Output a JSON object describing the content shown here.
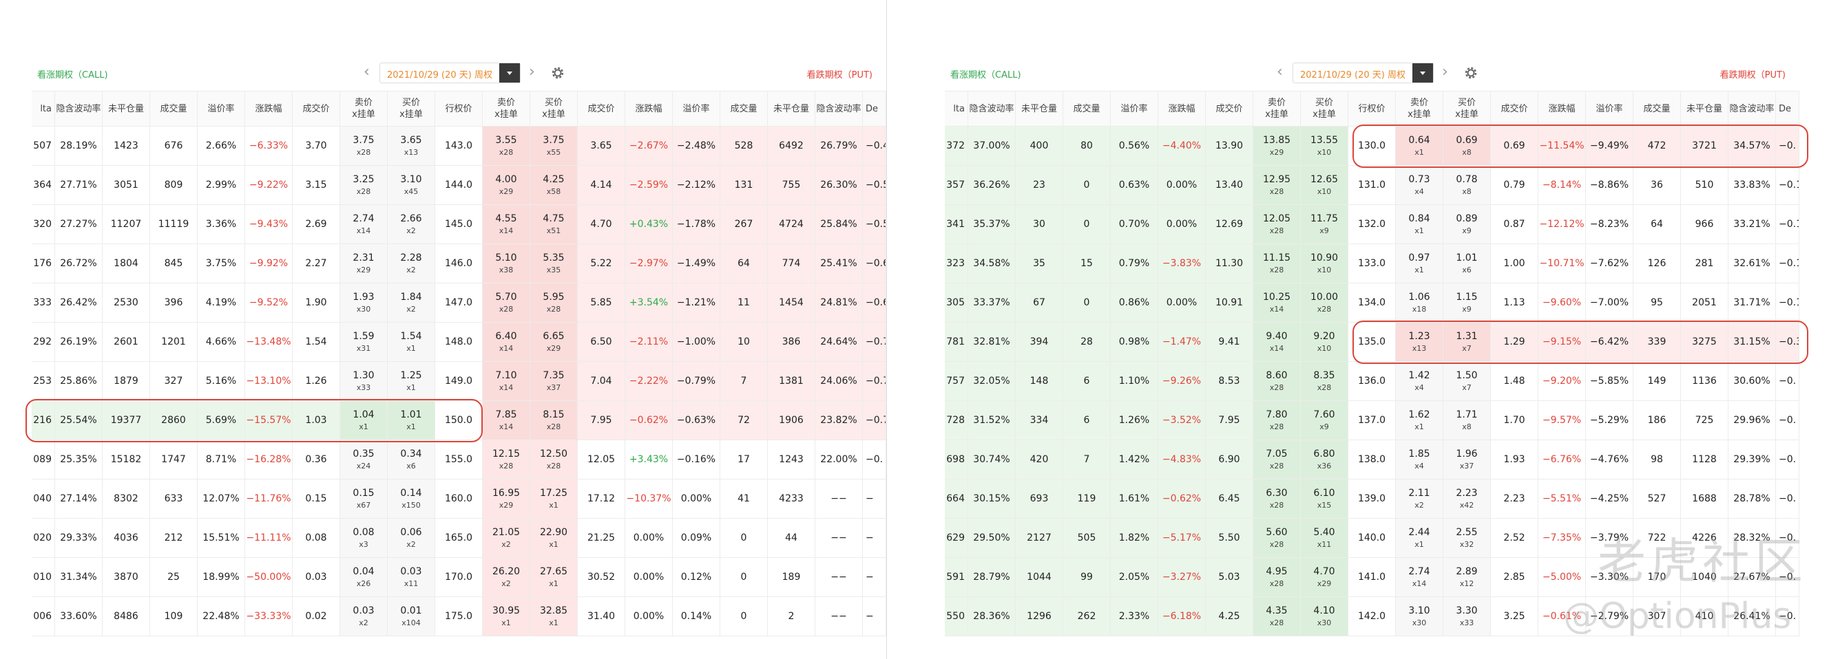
{
  "left": {
    "header": {
      "call_label": "看涨期权（CALL)",
      "date": "2021/10/29 (20 天) 周权",
      "put_label": "看跌期权（PUT)"
    },
    "columns": [
      "lta",
      "隐含波动率",
      "未平仓量",
      "成交量",
      "溢价率",
      "涨跌幅",
      "成交价",
      [
        "卖价",
        "x挂单"
      ],
      [
        "买价",
        "x挂单"
      ],
      "行权价",
      [
        "卖价",
        "x挂单"
      ],
      [
        "买价",
        "x挂单"
      ],
      "成交价",
      "涨跌幅",
      "溢价率",
      "成交量",
      "未平仓量",
      "隐含波动率",
      "De"
    ],
    "rows": [
      [
        "507",
        "28.19%",
        "1423",
        "676",
        "2.66%",
        "−6.33%",
        "3.70",
        [
          "3.75",
          "x28"
        ],
        [
          "3.65",
          "x13"
        ],
        "143.0",
        [
          "3.55",
          "x28"
        ],
        [
          "3.75",
          "x55"
        ],
        "3.65",
        "−2.67%",
        "−2.48%",
        "528",
        "6492",
        "26.79%",
        "−0.4"
      ],
      [
        "364",
        "27.71%",
        "3051",
        "809",
        "2.99%",
        "−9.22%",
        "3.15",
        [
          "3.25",
          "x28"
        ],
        [
          "3.10",
          "x45"
        ],
        "144.0",
        [
          "4.00",
          "x29"
        ],
        [
          "4.25",
          "x58"
        ],
        "4.14",
        "−2.59%",
        "−2.12%",
        "131",
        "755",
        "26.30%",
        "−0.5"
      ],
      [
        "320",
        "27.27%",
        "11207",
        "11119",
        "3.36%",
        "−9.43%",
        "2.69",
        [
          "2.74",
          "x14"
        ],
        [
          "2.66",
          "x2"
        ],
        "145.0",
        [
          "4.55",
          "x14"
        ],
        [
          "4.75",
          "x51"
        ],
        "4.70",
        "+0.43%",
        "−1.78%",
        "267",
        "4724",
        "25.84%",
        "−0.5"
      ],
      [
        "176",
        "26.72%",
        "1804",
        "845",
        "3.75%",
        "−9.92%",
        "2.27",
        [
          "2.31",
          "x29"
        ],
        [
          "2.28",
          "x2"
        ],
        "146.0",
        [
          "5.10",
          "x38"
        ],
        [
          "5.35",
          "x35"
        ],
        "5.22",
        "−2.97%",
        "−1.49%",
        "64",
        "774",
        "25.41%",
        "−0.6"
      ],
      [
        "333",
        "26.42%",
        "2530",
        "396",
        "4.19%",
        "−9.52%",
        "1.90",
        [
          "1.93",
          "x30"
        ],
        [
          "1.84",
          "x2"
        ],
        "147.0",
        [
          "5.70",
          "x28"
        ],
        [
          "5.95",
          "x28"
        ],
        "5.85",
        "+3.54%",
        "−1.21%",
        "11",
        "1454",
        "24.81%",
        "−0.6"
      ],
      [
        "292",
        "26.19%",
        "2601",
        "1201",
        "4.66%",
        "−13.48%",
        "1.54",
        [
          "1.59",
          "x31"
        ],
        [
          "1.54",
          "x1"
        ],
        "148.0",
        [
          "6.40",
          "x14"
        ],
        [
          "6.65",
          "x29"
        ],
        "6.50",
        "−2.11%",
        "−1.00%",
        "10",
        "386",
        "24.64%",
        "−0.7"
      ],
      [
        "253",
        "25.86%",
        "1879",
        "327",
        "5.16%",
        "−13.10%",
        "1.26",
        [
          "1.30",
          "x33"
        ],
        [
          "1.25",
          "x1"
        ],
        "149.0",
        [
          "7.10",
          "x14"
        ],
        [
          "7.35",
          "x37"
        ],
        "7.04",
        "−2.22%",
        "−0.79%",
        "7",
        "1381",
        "24.06%",
        "−0.7"
      ],
      [
        "216",
        "25.54%",
        "19377",
        "2860",
        "5.69%",
        "−15.57%",
        "1.03",
        [
          "1.04",
          "x1"
        ],
        [
          "1.01",
          "x1"
        ],
        "150.0",
        [
          "7.85",
          "x14"
        ],
        [
          "8.15",
          "x28"
        ],
        "7.95",
        "−0.62%",
        "−0.63%",
        "72",
        "1906",
        "23.82%",
        "−0.7"
      ],
      [
        "089",
        "25.35%",
        "15182",
        "1747",
        "8.71%",
        "−16.28%",
        "0.36",
        [
          "0.35",
          "x24"
        ],
        [
          "0.34",
          "x6"
        ],
        "155.0",
        [
          "12.15",
          "x28"
        ],
        [
          "12.50",
          "x28"
        ],
        "12.05",
        "+3.43%",
        "−0.16%",
        "17",
        "1243",
        "22.00%",
        "−0."
      ],
      [
        "040",
        "27.14%",
        "8302",
        "633",
        "12.07%",
        "−11.76%",
        "0.15",
        [
          "0.15",
          "x67"
        ],
        [
          "0.14",
          "x150"
        ],
        "160.0",
        [
          "16.95",
          "x29"
        ],
        [
          "17.25",
          "x1"
        ],
        "17.12",
        "−10.37%",
        "0.00%",
        "41",
        "4233",
        "−−",
        "−"
      ],
      [
        "020",
        "29.33%",
        "4036",
        "212",
        "15.51%",
        "−11.11%",
        "0.08",
        [
          "0.08",
          "x3"
        ],
        [
          "0.06",
          "x2"
        ],
        "165.0",
        [
          "21.05",
          "x2"
        ],
        [
          "22.90",
          "x1"
        ],
        "21.25",
        "0.00%",
        "0.09%",
        "0",
        "44",
        "−−",
        "−"
      ],
      [
        "010",
        "31.34%",
        "3870",
        "25",
        "18.99%",
        "−50.00%",
        "0.03",
        [
          "0.04",
          "x26"
        ],
        [
          "0.03",
          "x11"
        ],
        "170.0",
        [
          "26.20",
          "x2"
        ],
        [
          "27.65",
          "x1"
        ],
        "30.52",
        "0.00%",
        "0.12%",
        "0",
        "189",
        "−−",
        "−"
      ],
      [
        "006",
        "33.60%",
        "8486",
        "109",
        "22.48%",
        "−33.33%",
        "0.02",
        [
          "0.03",
          "x2"
        ],
        [
          "0.01",
          "x104"
        ],
        "175.0",
        [
          "30.95",
          "x1"
        ],
        [
          "32.85",
          "x1"
        ],
        "31.40",
        "0.00%",
        "0.14%",
        "0",
        "2",
        "−−",
        "−"
      ]
    ]
  },
  "right": {
    "header": {
      "call_label": "看涨期权（CALL)",
      "date": "2021/10/29 (20 天) 周权",
      "put_label": "看跌期权（PUT)"
    },
    "columns": [
      "lta",
      "隐含波动率",
      "未平仓量",
      "成交量",
      "溢价率",
      "涨跌幅",
      "成交价",
      [
        "卖价",
        "x挂单"
      ],
      [
        "买价",
        "x挂单"
      ],
      "行权价",
      [
        "卖价",
        "x挂单"
      ],
      [
        "买价",
        "x挂单"
      ],
      "成交价",
      "涨跌幅",
      "溢价率",
      "成交量",
      "未平仓量",
      "隐含波动率",
      "De"
    ],
    "rows": [
      [
        "372",
        "37.00%",
        "400",
        "80",
        "0.56%",
        "−4.40%",
        "13.90",
        [
          "13.85",
          "x29"
        ],
        [
          "13.55",
          "x10"
        ],
        "130.0",
        [
          "0.64",
          "x1"
        ],
        [
          "0.69",
          "x8"
        ],
        "0.69",
        "−11.54%",
        "−9.49%",
        "472",
        "3721",
        "34.57%",
        "−0."
      ],
      [
        "357",
        "36.26%",
        "23",
        "0",
        "0.63%",
        "0.00%",
        "13.40",
        [
          "12.95",
          "x28"
        ],
        [
          "12.65",
          "x10"
        ],
        "131.0",
        [
          "0.73",
          "x4"
        ],
        [
          "0.78",
          "x8"
        ],
        "0.79",
        "−8.14%",
        "−8.86%",
        "36",
        "510",
        "33.83%",
        "−0.1"
      ],
      [
        "341",
        "35.37%",
        "30",
        "0",
        "0.70%",
        "0.00%",
        "12.69",
        [
          "12.05",
          "x28"
        ],
        [
          "11.75",
          "x9"
        ],
        "132.0",
        [
          "0.84",
          "x1"
        ],
        [
          "0.89",
          "x9"
        ],
        "0.87",
        "−12.12%",
        "−8.23%",
        "64",
        "966",
        "33.21%",
        "−0.1"
      ],
      [
        "323",
        "34.58%",
        "35",
        "15",
        "0.79%",
        "−3.83%",
        "11.30",
        [
          "11.15",
          "x28"
        ],
        [
          "10.90",
          "x10"
        ],
        "133.0",
        [
          "0.97",
          "x1"
        ],
        [
          "1.01",
          "x6"
        ],
        "1.00",
        "−10.71%",
        "−7.62%",
        "126",
        "281",
        "32.61%",
        "−0.1"
      ],
      [
        "305",
        "33.37%",
        "67",
        "0",
        "0.86%",
        "0.00%",
        "10.91",
        [
          "10.25",
          "x14"
        ],
        [
          "10.00",
          "x28"
        ],
        "134.0",
        [
          "1.06",
          "x18"
        ],
        [
          "1.15",
          "x9"
        ],
        "1.13",
        "−9.60%",
        "−7.00%",
        "95",
        "2051",
        "31.71%",
        "−0.1"
      ],
      [
        "781",
        "32.81%",
        "394",
        "28",
        "0.98%",
        "−1.47%",
        "9.41",
        [
          "9.40",
          "x14"
        ],
        [
          "9.20",
          "x10"
        ],
        "135.0",
        [
          "1.23",
          "x13"
        ],
        [
          "1.31",
          "x7"
        ],
        "1.29",
        "−9.15%",
        "−6.42%",
        "339",
        "3275",
        "31.15%",
        "−0.3"
      ],
      [
        "757",
        "32.05%",
        "148",
        "6",
        "1.10%",
        "−9.26%",
        "8.53",
        [
          "8.60",
          "x28"
        ],
        [
          "8.35",
          "x28"
        ],
        "136.0",
        [
          "1.42",
          "x4"
        ],
        [
          "1.50",
          "x7"
        ],
        "1.48",
        "−9.20%",
        "−5.85%",
        "149",
        "1136",
        "30.60%",
        "−0."
      ],
      [
        "728",
        "31.52%",
        "334",
        "6",
        "1.26%",
        "−3.52%",
        "7.95",
        [
          "7.80",
          "x28"
        ],
        [
          "7.60",
          "x9"
        ],
        "137.0",
        [
          "1.62",
          "x1"
        ],
        [
          "1.71",
          "x8"
        ],
        "1.70",
        "−9.57%",
        "−5.29%",
        "186",
        "725",
        "29.96%",
        "−0."
      ],
      [
        "698",
        "30.74%",
        "420",
        "7",
        "1.42%",
        "−4.83%",
        "6.90",
        [
          "7.05",
          "x28"
        ],
        [
          "6.80",
          "x36"
        ],
        "138.0",
        [
          "1.85",
          "x4"
        ],
        [
          "1.96",
          "x37"
        ],
        "1.93",
        "−6.76%",
        "−4.76%",
        "98",
        "1128",
        "29.39%",
        "−0."
      ],
      [
        "664",
        "30.15%",
        "693",
        "119",
        "1.61%",
        "−0.62%",
        "6.45",
        [
          "6.30",
          "x28"
        ],
        [
          "6.10",
          "x15"
        ],
        "139.0",
        [
          "2.11",
          "x2"
        ],
        [
          "2.23",
          "x42"
        ],
        "2.23",
        "−5.51%",
        "−4.25%",
        "527",
        "1688",
        "28.78%",
        "−0."
      ],
      [
        "629",
        "29.50%",
        "2127",
        "505",
        "1.82%",
        "−5.17%",
        "5.50",
        [
          "5.60",
          "x28"
        ],
        [
          "5.40",
          "x11"
        ],
        "140.0",
        [
          "2.44",
          "x1"
        ],
        [
          "2.55",
          "x32"
        ],
        "2.52",
        "−7.35%",
        "−3.79%",
        "722",
        "4226",
        "28.32%",
        "−0."
      ],
      [
        "591",
        "28.79%",
        "1044",
        "99",
        "2.05%",
        "−3.27%",
        "5.03",
        [
          "4.95",
          "x28"
        ],
        [
          "4.70",
          "x29"
        ],
        "141.0",
        [
          "2.74",
          "x14"
        ],
        [
          "2.89",
          "x12"
        ],
        "2.85",
        "−5.00%",
        "−3.30%",
        "170",
        "1040",
        "27.67%",
        "−0."
      ],
      [
        "550",
        "28.36%",
        "1296",
        "262",
        "2.33%",
        "−6.18%",
        "4.25",
        [
          "4.35",
          "x28"
        ],
        [
          "4.10",
          "x30"
        ],
        "142.0",
        [
          "3.10",
          "x30"
        ],
        [
          "3.30",
          "x33"
        ],
        "3.25",
        "−0.61%",
        "−2.79%",
        "307",
        "410",
        "26.41%",
        "−0."
      ]
    ]
  },
  "watermark": {
    "title": "老虎社区",
    "handle": "@OptionPlus"
  }
}
